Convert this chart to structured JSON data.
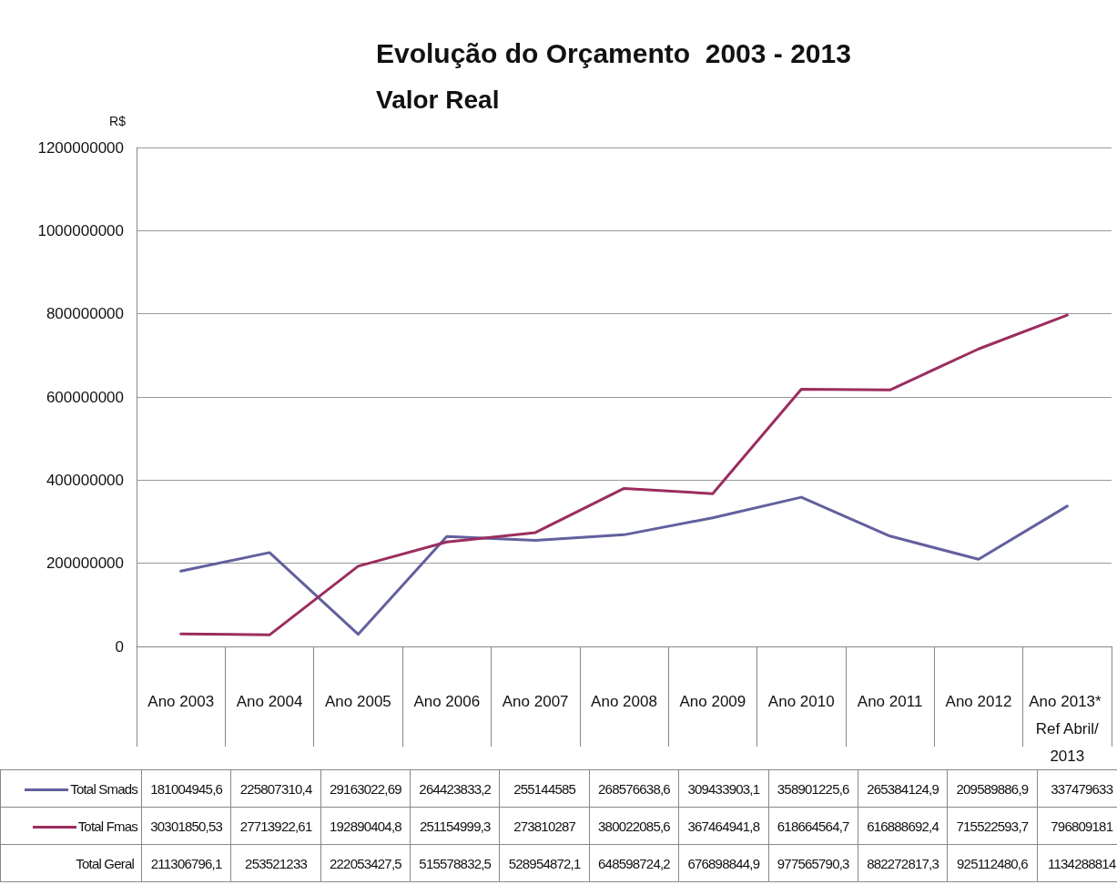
{
  "chart_data": {
    "type": "line",
    "title": "Evolução do Orçamento  2003 - 2013",
    "subtitle": "Valor Real",
    "ylabel": "R$",
    "categories": [
      "Ano 2003",
      "Ano 2004",
      "Ano 2005",
      "Ano 2006",
      "Ano 2007",
      "Ano 2008",
      "Ano 2009",
      "Ano 2010",
      "Ano 2011",
      "Ano 2012",
      "Ano 2013* Ref Abril/2013"
    ],
    "series": [
      {
        "name": "Total Smads",
        "color": "#63609e",
        "values": [
          181004945.6,
          225807310.4,
          29163022.69,
          264423833.2,
          255144585,
          268576638.6,
          309433903.1,
          358901225.6,
          265384124.9,
          209589886.9,
          337479633
        ],
        "value_labels": [
          "181004945,6",
          "225807310,4",
          "29163022,69",
          "264423833,2",
          "255144585",
          "268576638,6",
          "309433903,1",
          "358901225,6",
          "265384124,9",
          "209589886,9",
          "337479633"
        ]
      },
      {
        "name": "Total Fmas",
        "color": "#9b2d5f",
        "values": [
          30301850.53,
          27713922.61,
          192890404.8,
          251154999.3,
          273810287,
          380022085.6,
          367464941.8,
          618664564.7,
          616888692.4,
          715522593.7,
          796809181
        ],
        "value_labels": [
          "30301850,53",
          "27713922,61",
          "192890404,8",
          "251154999,3",
          "273810287",
          "380022085,6",
          "367464941,8",
          "618664564,7",
          "616888692,4",
          "715522593,7",
          "796809181"
        ]
      }
    ],
    "annotations": [
      "Total Geral",
      "211306796,1",
      "253521233",
      "222053427,5",
      "515578832,5",
      "528954872,1",
      "648598724,2",
      "676898844,9",
      "977565790,3",
      "882272817,3",
      "925112480,6",
      "1134288814"
    ],
    "ylim": [
      0,
      1200000000
    ],
    "yticks": [
      0,
      200000000,
      400000000,
      600000000,
      800000000,
      1000000000,
      1200000000
    ],
    "grid": "y",
    "marker": "none",
    "line_style": "solid",
    "legend": "bottom"
  }
}
